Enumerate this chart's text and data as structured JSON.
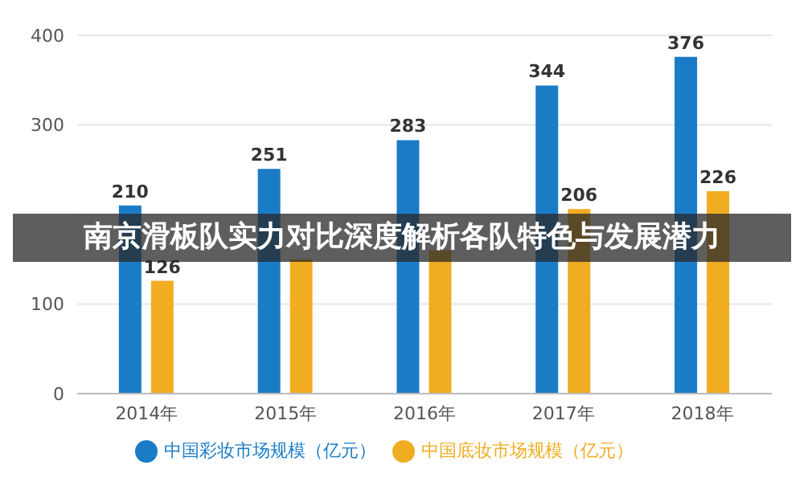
{
  "chart_data": {
    "type": "bar",
    "title": "南京滑板队实力对比深度解析各队特色与发展潜力",
    "categories": [
      "2014年",
      "2015年",
      "2016年",
      "2017年",
      "2018年"
    ],
    "series": [
      {
        "name": "中国彩妆市场规模（亿元）",
        "color": "#1a7cc7",
        "values": [
          210,
          251,
          283,
          344,
          376
        ],
        "value_labels": [
          "210",
          "251",
          "283",
          "344",
          "376"
        ]
      },
      {
        "name": "中国底妆市场规模（亿元）",
        "color": "#f0ad22",
        "values": [
          126,
          150,
          160,
          206,
          226
        ],
        "value_labels": [
          "126",
          null,
          null,
          "206",
          "226"
        ]
      }
    ],
    "ylim": [
      0,
      400
    ],
    "yticks": [
      0,
      100,
      {
        "value": 200,
        "label": null
      },
      300,
      400
    ],
    "grid": "y",
    "legend": "bottom"
  }
}
